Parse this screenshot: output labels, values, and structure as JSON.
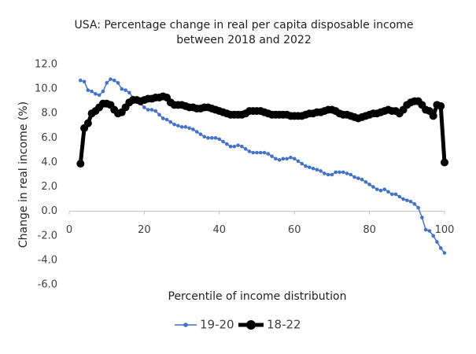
{
  "chart_data": {
    "type": "line",
    "title": [
      "USA: Percentage change in real per capita disposable income",
      "between 2018 and 2022"
    ],
    "xlabel": "Percentile of income distribution",
    "ylabel": "Change in real income (%)",
    "x": [
      3,
      4,
      5,
      6,
      7,
      8,
      9,
      10,
      11,
      12,
      13,
      14,
      15,
      16,
      17,
      18,
      19,
      20,
      21,
      22,
      23,
      24,
      25,
      26,
      27,
      28,
      29,
      30,
      31,
      32,
      33,
      34,
      35,
      36,
      37,
      38,
      39,
      40,
      41,
      42,
      43,
      44,
      45,
      46,
      47,
      48,
      49,
      50,
      51,
      52,
      53,
      54,
      55,
      56,
      57,
      58,
      59,
      60,
      61,
      62,
      63,
      64,
      65,
      66,
      67,
      68,
      69,
      70,
      71,
      72,
      73,
      74,
      75,
      76,
      77,
      78,
      79,
      80,
      81,
      82,
      83,
      84,
      85,
      86,
      87,
      88,
      89,
      90,
      91,
      92,
      93,
      94,
      95,
      96,
      97,
      98,
      99,
      100
    ],
    "series": [
      {
        "name": "19-20",
        "color": "#4472c4",
        "values": [
          10.7,
          10.6,
          9.9,
          9.8,
          9.6,
          9.5,
          9.8,
          10.5,
          10.8,
          10.7,
          10.5,
          10.0,
          9.9,
          9.7,
          9.3,
          9.0,
          8.8,
          8.5,
          8.3,
          8.3,
          8.2,
          7.9,
          7.6,
          7.5,
          7.3,
          7.1,
          7.0,
          6.9,
          6.9,
          6.8,
          6.7,
          6.5,
          6.3,
          6.1,
          6.0,
          6.0,
          6.0,
          5.9,
          5.7,
          5.5,
          5.3,
          5.3,
          5.4,
          5.3,
          5.1,
          4.9,
          4.8,
          4.8,
          4.8,
          4.8,
          4.7,
          4.5,
          4.3,
          4.2,
          4.3,
          4.3,
          4.4,
          4.3,
          4.1,
          3.9,
          3.7,
          3.6,
          3.5,
          3.4,
          3.3,
          3.1,
          3.0,
          3.0,
          3.2,
          3.2,
          3.2,
          3.1,
          3.0,
          2.8,
          2.7,
          2.6,
          2.4,
          2.2,
          2.0,
          1.8,
          1.7,
          1.8,
          1.6,
          1.4,
          1.4,
          1.2,
          1.0,
          0.9,
          0.8,
          0.6,
          0.3,
          -0.5,
          -1.5,
          -1.6,
          -2.0,
          -2.5,
          -3.0,
          -3.4
        ]
      },
      {
        "name": "18-22",
        "color": "#000000",
        "values": [
          3.9,
          6.8,
          7.2,
          8.0,
          8.2,
          8.5,
          8.8,
          8.8,
          8.7,
          8.3,
          8.0,
          8.1,
          8.5,
          8.9,
          9.1,
          9.1,
          9.0,
          9.1,
          9.2,
          9.2,
          9.3,
          9.3,
          9.4,
          9.3,
          8.9,
          8.7,
          8.7,
          8.7,
          8.6,
          8.5,
          8.5,
          8.4,
          8.4,
          8.5,
          8.5,
          8.4,
          8.3,
          8.2,
          8.1,
          8.0,
          7.9,
          7.9,
          7.9,
          7.9,
          8.0,
          8.2,
          8.2,
          8.2,
          8.2,
          8.1,
          8.0,
          7.9,
          7.9,
          7.9,
          7.9,
          7.9,
          7.8,
          7.8,
          7.8,
          7.8,
          7.9,
          8.0,
          8.0,
          8.1,
          8.1,
          8.2,
          8.3,
          8.3,
          8.2,
          8.0,
          7.9,
          7.9,
          7.8,
          7.7,
          7.6,
          7.7,
          7.8,
          7.9,
          8.0,
          8.0,
          8.1,
          8.2,
          8.3,
          8.2,
          8.2,
          8.0,
          8.3,
          8.7,
          8.9,
          9.0,
          9.0,
          8.7,
          8.3,
          8.2,
          7.8,
          8.7,
          8.6,
          4.0
        ]
      }
    ],
    "xlim": [
      0,
      100
    ],
    "xticks": [
      0,
      20,
      40,
      60,
      80,
      100
    ],
    "ylim": [
      -6,
      12
    ],
    "yticks": [
      {
        "value": 12,
        "label": "12.0"
      },
      {
        "value": 10,
        "label": "10.0"
      },
      {
        "value": 8,
        "label": "8.0"
      },
      {
        "value": 6,
        "label": "6.0"
      },
      {
        "value": 4,
        "label": "4.0"
      },
      {
        "value": 2,
        "label": "2.0"
      },
      {
        "value": 0,
        "label": "0.0"
      },
      {
        "value": -2,
        "label": "-2.0"
      },
      {
        "value": -4,
        "label": "-4.0"
      },
      {
        "value": -6,
        "label": "-6.0"
      }
    ],
    "grid": false,
    "legend": "bottom"
  }
}
